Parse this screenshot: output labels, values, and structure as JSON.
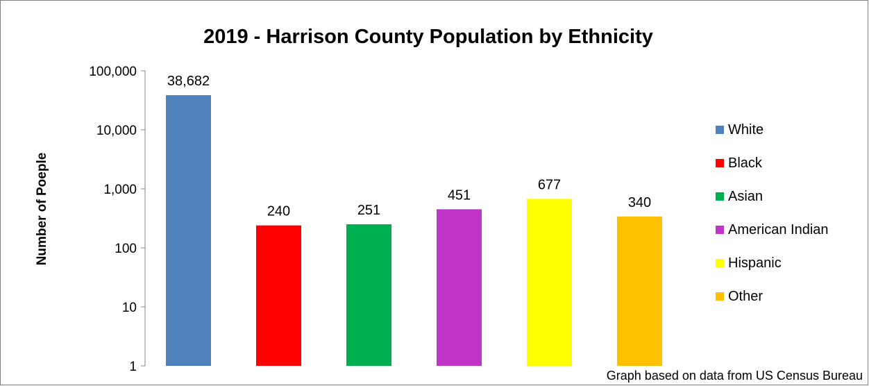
{
  "chart_data": {
    "type": "bar",
    "title": "2019 - Harrison County Population by Ethnicity",
    "ylabel": "Number of Poeple",
    "xlabel": "",
    "y_scale": "log",
    "ylim": [
      1,
      100000
    ],
    "y_ticks": [
      1,
      10,
      100,
      1000,
      10000,
      100000
    ],
    "y_tick_labels": [
      "1",
      "10",
      "100",
      "1,000",
      "10,000",
      "100,000"
    ],
    "grid": false,
    "legend_position": "right",
    "categories": [
      "White",
      "Black",
      "Asian",
      "American Indian",
      "Hispanic",
      "Other"
    ],
    "values": [
      38682,
      240,
      251,
      451,
      677,
      340
    ],
    "value_labels": [
      "38,682",
      "240",
      "251",
      "451",
      "677",
      "340"
    ],
    "colors": [
      "#4f81bd",
      "#ff0000",
      "#00b050",
      "#c034c8",
      "#ffff00",
      "#ffc000"
    ],
    "note": "Graph based on data from US Census Bureau"
  }
}
